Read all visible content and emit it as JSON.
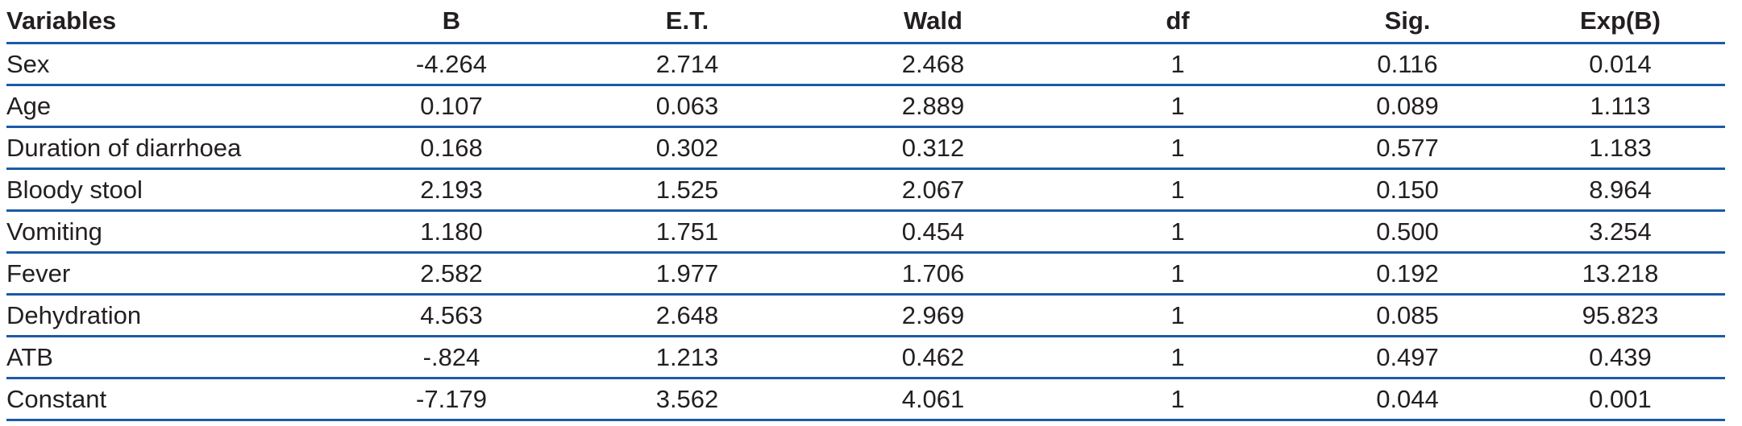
{
  "table": {
    "columns": [
      {
        "key": "variable",
        "label": "Variables",
        "align": "left"
      },
      {
        "key": "b",
        "label": "B",
        "align": "center"
      },
      {
        "key": "et",
        "label": "E.T.",
        "align": "center"
      },
      {
        "key": "wald",
        "label": "Wald",
        "align": "center"
      },
      {
        "key": "df",
        "label": "df",
        "align": "center"
      },
      {
        "key": "sig",
        "label": "Sig.",
        "align": "center"
      },
      {
        "key": "expb",
        "label": "Exp(B)",
        "align": "center"
      }
    ],
    "rows": [
      [
        "Sex",
        "-4.264",
        "2.714",
        "2.468",
        "1",
        "0.116",
        "0.014"
      ],
      [
        "Age",
        "0.107",
        "0.063",
        "2.889",
        "1",
        "0.089",
        "1.113"
      ],
      [
        "Duration of diarrhoea",
        "0.168",
        "0.302",
        "0.312",
        "1",
        "0.577",
        "1.183"
      ],
      [
        "Bloody stool",
        "2.193",
        "1.525",
        "2.067",
        "1",
        "0.150",
        "8.964"
      ],
      [
        "Vomiting",
        "1.180",
        "1.751",
        "0.454",
        "1",
        "0.500",
        "3.254"
      ],
      [
        "Fever",
        "2.582",
        "1.977",
        "1.706",
        "1",
        "0.192",
        "13.218"
      ],
      [
        "Dehydration",
        "4.563",
        "2.648",
        "2.969",
        "1",
        "0.085",
        "95.823"
      ],
      [
        "ATB",
        "-.824",
        "1.213",
        "0.462",
        "1",
        "0.497",
        "0.439"
      ],
      [
        "Constant",
        "-7.179",
        "3.562",
        "4.061",
        "1",
        "0.044",
        "0.001"
      ]
    ]
  },
  "chart_data": {
    "type": "table",
    "title": "",
    "columns": [
      "Variables",
      "B",
      "E.T.",
      "Wald",
      "df",
      "Sig.",
      "Exp(B)"
    ],
    "rows": [
      [
        "Sex",
        -4.264,
        2.714,
        2.468,
        1,
        0.116,
        0.014
      ],
      [
        "Age",
        0.107,
        0.063,
        2.889,
        1,
        0.089,
        1.113
      ],
      [
        "Duration of diarrhoea",
        0.168,
        0.302,
        0.312,
        1,
        0.577,
        1.183
      ],
      [
        "Bloody stool",
        2.193,
        1.525,
        2.067,
        1,
        0.15,
        8.964
      ],
      [
        "Vomiting",
        1.18,
        1.751,
        0.454,
        1,
        0.5,
        3.254
      ],
      [
        "Fever",
        2.582,
        1.977,
        1.706,
        1,
        0.192,
        13.218
      ],
      [
        "Dehydration",
        4.563,
        2.648,
        2.969,
        1,
        0.085,
        95.823
      ],
      [
        "ATB",
        -0.824,
        1.213,
        0.462,
        1,
        0.497,
        0.439
      ],
      [
        "Constant",
        -7.179,
        3.562,
        4.061,
        1,
        0.044,
        0.001
      ]
    ]
  },
  "colors": {
    "rule_blue": "#1b5aa7",
    "text": "#231f20"
  }
}
